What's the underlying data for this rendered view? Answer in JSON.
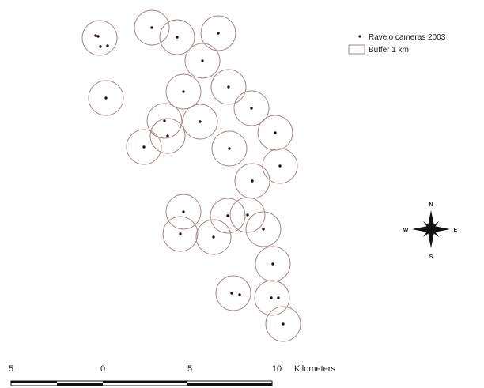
{
  "legend": {
    "cameras_label": "Ravelo cameras 2003",
    "buffer_label": "Buffer 1 km"
  },
  "scale_bar": {
    "ticks": [
      "5",
      "0",
      "5",
      "10"
    ],
    "unit_label": "Kilometers"
  },
  "north_arrow": {
    "n": "N",
    "s": "S",
    "e": "E",
    "w": "W"
  },
  "colors": {
    "buffer_stroke": "#a88a86",
    "camera_point": "#2a1010",
    "ink": "#1a1a1a"
  }
}
